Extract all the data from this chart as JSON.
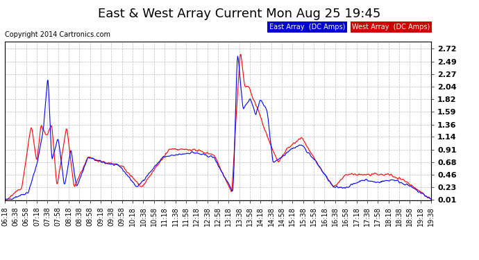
{
  "title": "East & West Array Current Mon Aug 25 19:45",
  "copyright": "Copyright 2014 Cartronics.com",
  "east_label": "East Array  (DC Amps)",
  "west_label": "West Array  (DC Amps)",
  "east_color": "#0000ff",
  "west_color": "#ff0000",
  "east_legend_bg": "#0000cc",
  "west_legend_bg": "#cc0000",
  "background_color": "#ffffff",
  "grid_color": "#bbbbbb",
  "ylim": [
    0,
    2.85
  ],
  "yticks": [
    0.01,
    0.23,
    0.46,
    0.68,
    0.91,
    1.14,
    1.36,
    1.59,
    1.82,
    2.04,
    2.27,
    2.49,
    2.72
  ],
  "xtick_labels": [
    "06:18",
    "06:38",
    "06:58",
    "07:18",
    "07:38",
    "07:58",
    "08:18",
    "08:38",
    "08:58",
    "09:18",
    "09:38",
    "09:58",
    "10:18",
    "10:38",
    "10:58",
    "11:18",
    "11:38",
    "11:58",
    "12:18",
    "12:38",
    "12:58",
    "13:18",
    "13:38",
    "13:58",
    "14:18",
    "14:38",
    "14:58",
    "15:18",
    "15:38",
    "15:58",
    "16:18",
    "16:38",
    "16:58",
    "17:18",
    "17:38",
    "17:58",
    "18:18",
    "18:38",
    "18:58",
    "19:18",
    "19:38"
  ],
  "title_fontsize": 13,
  "copyright_fontsize": 7,
  "tick_fontsize": 7,
  "ytick_fontsize": 8,
  "legend_fontsize": 7,
  "line_width": 0.8
}
